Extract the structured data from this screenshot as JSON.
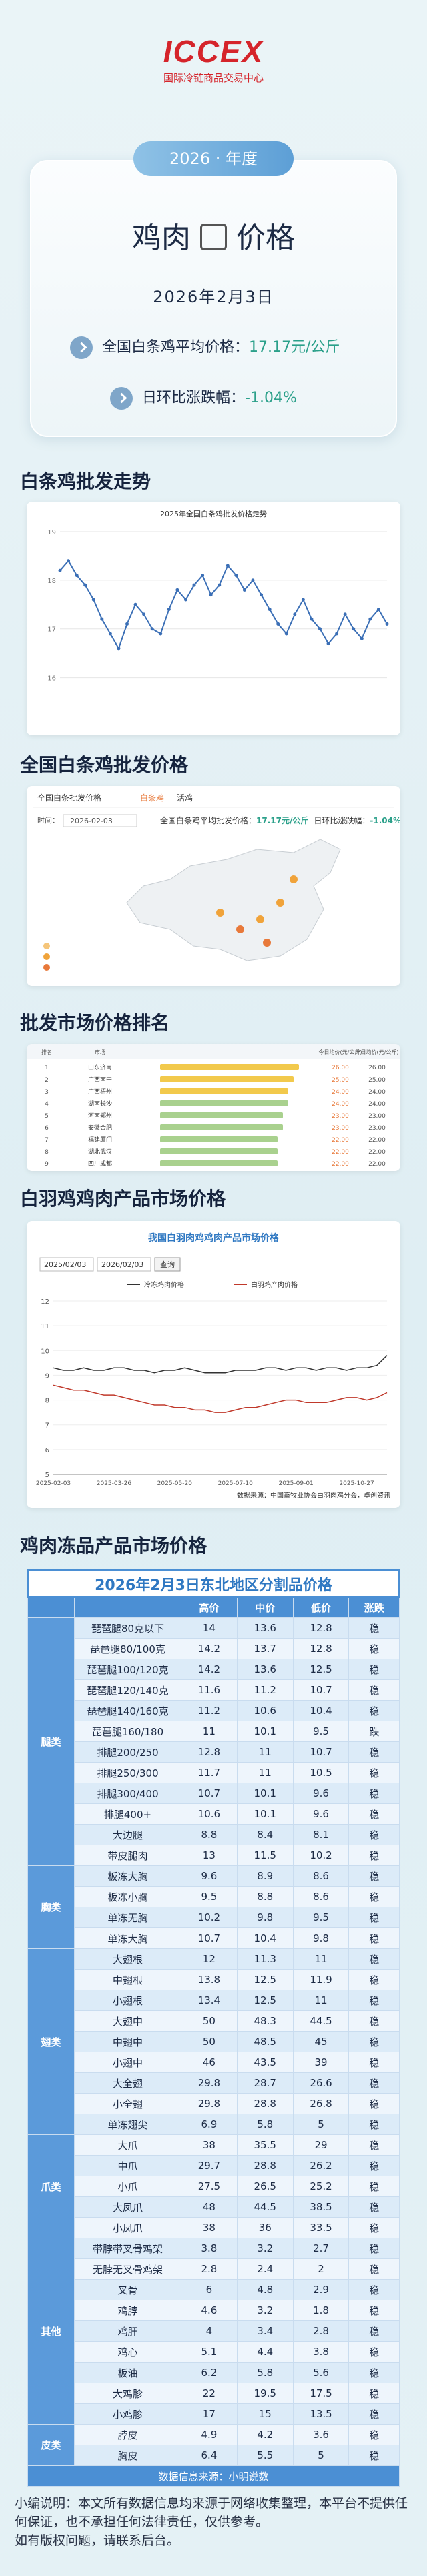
{
  "header": {
    "logo": "ICCEX",
    "org": "国际冷链商品交易中心",
    "badge": "2026 · 年度",
    "title_left": "鸡肉",
    "title_right": "价格",
    "date": "2026年2月3日",
    "avg_label": "全国白条鸡平均价格：",
    "avg_value": "17.17元/公斤",
    "change_label": "日环比涨跌幅：",
    "change_value": "-1.04%"
  },
  "sections": [
    "白条鸡批发走势",
    "全国白条鸡批发价格",
    "批发市场价格排名",
    "白羽鸡鸡肉产品市场价格",
    "鸡肉冻品产品市场价格"
  ],
  "trend_chart": {
    "type": "line",
    "title": "2025年全国白条鸡批发价格走势",
    "color": "#3b6fb6",
    "values": [
      18.2,
      18.4,
      18.1,
      17.9,
      17.6,
      17.2,
      16.9,
      16.6,
      17.1,
      17.5,
      17.3,
      17.0,
      16.9,
      17.4,
      17.8,
      17.6,
      17.9,
      18.1,
      17.7,
      17.9,
      18.3,
      18.1,
      17.8,
      18.0,
      17.7,
      17.4,
      17.1,
      16.9,
      17.3,
      17.6,
      17.2,
      17.0,
      16.7,
      16.9,
      17.3,
      17.0,
      16.8,
      17.2,
      17.4,
      17.1
    ],
    "ylim": [
      15.5,
      19
    ],
    "yticks": [
      16,
      17,
      18,
      19
    ]
  },
  "map_panel": {
    "title": "全国白条批发价格",
    "tabs": [
      "白条鸡",
      "活鸡"
    ],
    "time_label": "时间：",
    "time": "2026-02-03",
    "avg_label": "全国白条鸡平均批发价格：",
    "avg_value": "17.17元/公斤",
    "change_label": "日环比涨跌幅：",
    "change_value": "-1.04%"
  },
  "ranking": {
    "columns": [
      "排名",
      "市场",
      "今日均价(元/公斤)",
      "昨日均价(元/公斤)"
    ],
    "xlim": [
      0,
      30
    ],
    "rows": [
      {
        "rank": 1,
        "market": "山东济南",
        "price": 26,
        "price_label": "26.00",
        "prev_label": "26.00"
      },
      {
        "rank": 2,
        "market": "广西南宁",
        "price": 25,
        "price_label": "25.00",
        "prev_label": "25.00"
      },
      {
        "rank": 3,
        "market": "广西梧州",
        "price": 24,
        "price_label": "24.00",
        "prev_label": "24.00"
      },
      {
        "rank": 4,
        "market": "湖南长沙",
        "price": 24,
        "price_label": "24.00",
        "prev_label": "24.00"
      },
      {
        "rank": 5,
        "market": "河南郑州",
        "price": 23,
        "price_label": "23.00",
        "prev_label": "23.00"
      },
      {
        "rank": 6,
        "market": "安徽合肥",
        "price": 23,
        "price_label": "23.00",
        "prev_label": "23.00"
      },
      {
        "rank": 7,
        "market": "福建厦门",
        "price": 22,
        "price_label": "22.00",
        "prev_label": "22.00"
      },
      {
        "rank": 8,
        "market": "湖北武汉",
        "price": 22,
        "price_label": "22.00",
        "prev_label": "22.00"
      },
      {
        "rank": 9,
        "market": "四川成都",
        "price": 22,
        "price_label": "22.00",
        "prev_label": "22.00"
      }
    ]
  },
  "white_chart": {
    "type": "line",
    "title": "我国白羽肉鸡鸡肉产品市场价格",
    "start": "2025/02/03",
    "end": "2026/02/03",
    "button": "查询",
    "categories": [
      "2025-02-03",
      null,
      null,
      null,
      null,
      null,
      "2025-03-26",
      null,
      null,
      null,
      null,
      null,
      "2025-05-20",
      null,
      null,
      null,
      null,
      null,
      "2025-07-10",
      null,
      null,
      null,
      null,
      null,
      "2025-09-01",
      null,
      null,
      null,
      null,
      null,
      "2025-10-27",
      null,
      null,
      null
    ],
    "series": [
      {
        "name": "冷冻鸡肉价格",
        "color": "#333333",
        "values": [
          9.3,
          9.2,
          9.2,
          9.3,
          9.2,
          9.2,
          9.3,
          9.3,
          9.2,
          9.2,
          9.1,
          9.2,
          9.2,
          9.3,
          9.2,
          9.1,
          9.1,
          9.1,
          9.2,
          9.2,
          9.2,
          9.3,
          9.3,
          9.2,
          9.3,
          9.3,
          9.2,
          9.3,
          9.3,
          9.2,
          9.3,
          9.3,
          9.4,
          9.8
        ]
      },
      {
        "name": "白羽鸡产肉价格",
        "color": "#c0392b",
        "values": [
          8.6,
          8.5,
          8.4,
          8.4,
          8.3,
          8.2,
          8.2,
          8.1,
          8.0,
          7.9,
          7.8,
          7.8,
          7.7,
          7.7,
          7.6,
          7.6,
          7.5,
          7.5,
          7.6,
          7.7,
          7.7,
          7.8,
          7.9,
          8.0,
          8.0,
          7.9,
          7.9,
          7.9,
          8.0,
          8.1,
          8.1,
          8.0,
          8.1,
          8.3
        ]
      }
    ],
    "ylim": [
      5,
      12
    ],
    "yticks": [
      5,
      6,
      7,
      8,
      9,
      10,
      11,
      12
    ],
    "source": "数据来源：中国畜牧业协会白羽肉鸡分会，卓创资讯"
  },
  "frozen_table": {
    "title": "2026年2月3日东北地区分割品价格",
    "columns": [
      "高价",
      "中价",
      "低价",
      "涨跌"
    ],
    "groups": [
      {
        "name": "腿类",
        "rows": [
          [
            "琵琶腿80克以下",
            14,
            13.6,
            12.8,
            "稳"
          ],
          [
            "琵琶腿80/100克",
            14.2,
            13.7,
            12.8,
            "稳"
          ],
          [
            "琵琶腿100/120克",
            14.2,
            13.6,
            12.5,
            "稳"
          ],
          [
            "琵琶腿120/140克",
            11.6,
            11.2,
            10.7,
            "稳"
          ],
          [
            "琵琶腿140/160克",
            11.2,
            10.6,
            10.4,
            "稳"
          ],
          [
            "琵琶腿160/180",
            11,
            10.1,
            9.5,
            "跌"
          ],
          [
            "排腿200/250",
            12.8,
            11,
            10.7,
            "稳"
          ],
          [
            "排腿250/300",
            11.7,
            11,
            10.5,
            "稳"
          ],
          [
            "排腿300/400",
            10.7,
            10.1,
            9.6,
            "稳"
          ],
          [
            "排腿400+",
            10.6,
            10.1,
            9.6,
            "稳"
          ],
          [
            "大边腿",
            8.8,
            8.4,
            8.1,
            "稳"
          ],
          [
            "带皮腿肉",
            13,
            11.5,
            10.2,
            "稳"
          ]
        ]
      },
      {
        "name": "胸类",
        "rows": [
          [
            "板冻大胸",
            9.6,
            8.9,
            8.6,
            "稳"
          ],
          [
            "板冻小胸",
            9.5,
            8.8,
            8.6,
            "稳"
          ],
          [
            "单冻无胸",
            10.2,
            9.8,
            9.5,
            "稳"
          ],
          [
            "单冻大胸",
            10.7,
            10.4,
            9.8,
            "稳"
          ]
        ]
      },
      {
        "name": "翅类",
        "rows": [
          [
            "大翅根",
            12,
            11.3,
            11,
            "稳"
          ],
          [
            "中翅根",
            13.8,
            12.5,
            11.9,
            "稳"
          ],
          [
            "小翅根",
            13.4,
            12.5,
            11,
            "稳"
          ],
          [
            "大翅中",
            50,
            48.3,
            44.5,
            "稳"
          ],
          [
            "中翅中",
            50,
            48.5,
            45,
            "稳"
          ],
          [
            "小翅中",
            46,
            43.5,
            39,
            "稳"
          ],
          [
            "大全翅",
            29.8,
            28.7,
            26.6,
            "稳"
          ],
          [
            "小全翅",
            29.8,
            28.8,
            26.8,
            "稳"
          ],
          [
            "单冻翅尖",
            6.9,
            5.8,
            5,
            "稳"
          ]
        ]
      },
      {
        "name": "爪类",
        "rows": [
          [
            "大爪",
            38,
            35.5,
            29,
            "稳"
          ],
          [
            "中爪",
            29.7,
            28.8,
            26.2,
            "稳"
          ],
          [
            "小爪",
            27.5,
            26.5,
            25.2,
            "稳"
          ],
          [
            "大凤爪",
            48,
            44.5,
            38.5,
            "稳"
          ],
          [
            "小凤爪",
            38,
            36,
            33.5,
            "稳"
          ]
        ]
      },
      {
        "name": "其他",
        "rows": [
          [
            "带脖带叉骨鸡架",
            3.8,
            3.2,
            2.7,
            "稳"
          ],
          [
            "无脖无叉骨鸡架",
            2.8,
            2.4,
            2,
            "稳"
          ],
          [
            "叉骨",
            6,
            4.8,
            2.9,
            "稳"
          ],
          [
            "鸡脖",
            4.6,
            3.2,
            1.8,
            "稳"
          ],
          [
            "鸡肝",
            4,
            3.4,
            2.8,
            "稳"
          ],
          [
            "鸡心",
            5.1,
            4.4,
            3.8,
            "稳"
          ],
          [
            "板油",
            6.2,
            5.8,
            5.6,
            "稳"
          ],
          [
            "大鸡胗",
            22,
            19.5,
            17.5,
            "稳"
          ],
          [
            "小鸡胗",
            17,
            15,
            13.5,
            "稳"
          ]
        ]
      },
      {
        "name": "皮类",
        "rows": [
          [
            "脖皮",
            4.9,
            4.2,
            3.6,
            "稳"
          ],
          [
            "胸皮",
            6.4,
            5.5,
            5,
            "稳"
          ]
        ]
      }
    ],
    "source": "数据信息来源：小明说数"
  },
  "footer": [
    "小编说明：本文所有数据信息均来源于网络收集整理，本平台不提供任何保证，也不承担任何法律责任，仅供参考。",
    "如有版权问题，请联系后台。"
  ]
}
